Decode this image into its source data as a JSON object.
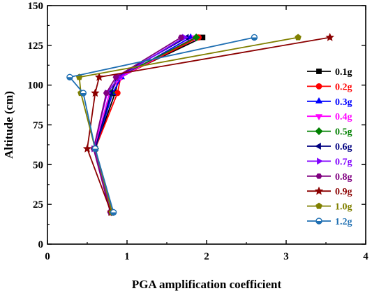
{
  "chart_data": {
    "type": "line",
    "xlabel": "PGA amplification coefficient",
    "ylabel": "Altitude (cm)",
    "xlim": [
      0,
      4
    ],
    "ylim": [
      0,
      150
    ],
    "xticks": [
      0,
      1,
      2,
      3,
      4
    ],
    "yticks": [
      0,
      25,
      50,
      75,
      100,
      125,
      150
    ],
    "legend_position": "right",
    "y": [
      20,
      60,
      95,
      105,
      130
    ],
    "series": [
      {
        "name": "0.1g",
        "color": "#000000",
        "marker": "square",
        "x": [
          0.8,
          0.6,
          0.85,
          0.9,
          1.95
        ]
      },
      {
        "name": "0.2g",
        "color": "#ff0000",
        "marker": "circle",
        "x": [
          0.8,
          0.6,
          0.88,
          0.92,
          1.9
        ]
      },
      {
        "name": "0.3g",
        "color": "#0000ff",
        "marker": "triangle-up",
        "x": [
          0.81,
          0.6,
          0.82,
          0.93,
          1.8
        ]
      },
      {
        "name": "0.4g",
        "color": "#ff00ff",
        "marker": "triangle-down",
        "x": [
          0.8,
          0.59,
          0.78,
          0.92,
          1.85
        ]
      },
      {
        "name": "0.5g",
        "color": "#008000",
        "marker": "diamond",
        "x": [
          0.81,
          0.6,
          0.8,
          0.88,
          1.87
        ]
      },
      {
        "name": "0.6g",
        "color": "#000080",
        "marker": "triangle-left",
        "x": [
          0.81,
          0.6,
          0.8,
          0.87,
          1.75
        ]
      },
      {
        "name": "0.7g",
        "color": "#8000ff",
        "marker": "triangle-right",
        "x": [
          0.8,
          0.58,
          0.75,
          0.9,
          1.72
        ]
      },
      {
        "name": "0.8g",
        "color": "#800080",
        "marker": "hexagon",
        "x": [
          0.79,
          0.58,
          0.74,
          0.86,
          1.68
        ]
      },
      {
        "name": "0.9g",
        "color": "#8b0000",
        "marker": "star",
        "x": [
          0.8,
          0.5,
          0.6,
          0.65,
          3.55
        ]
      },
      {
        "name": "1.0g",
        "color": "#808000",
        "marker": "pentagon",
        "x": [
          0.81,
          0.6,
          0.42,
          0.4,
          3.15
        ]
      },
      {
        "name": "1.2g",
        "color": "#1f6fb2",
        "marker": "circle-half",
        "x": [
          0.83,
          0.6,
          0.45,
          0.28,
          2.6
        ]
      }
    ]
  }
}
